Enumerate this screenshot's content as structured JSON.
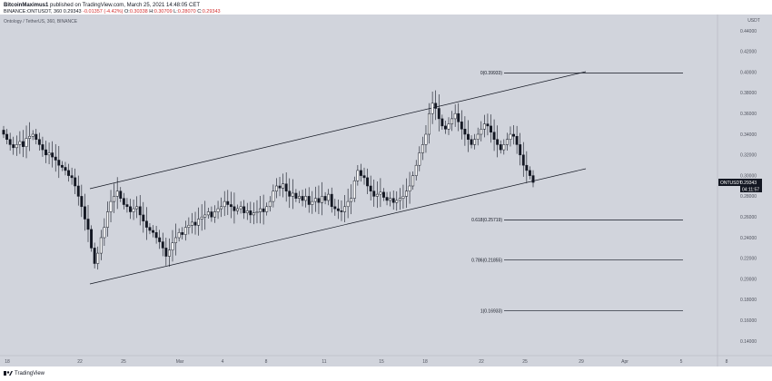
{
  "header": {
    "publisher": "BitcoinMaximus1",
    "published_text": "published on TradingView.com, March 25, 2021 14:48:05 CET",
    "symbol_line": "BINANCE:ONTUSDT, 360",
    "price": "0.29343",
    "change": "-0.01357 (-4.42%)",
    "o_label": "O:",
    "o": "0.30338",
    "h_label": "H:",
    "h": "0.30709",
    "l_label": "L:",
    "l": "0.28070",
    "c_label": "C:",
    "c": "0.29343"
  },
  "legend": {
    "text": "Ontology / TetherUS, 360, BINANCE"
  },
  "axis": {
    "currency": "USDT",
    "y_ticks": [
      "0.44000",
      "0.42000",
      "0.40000",
      "0.38000",
      "0.36000",
      "0.34000",
      "0.32000",
      "0.30000",
      "0.28000",
      "0.26000",
      "0.24000",
      "0.22000",
      "0.20000",
      "0.18000",
      "0.16000",
      "0.14000"
    ],
    "x_ticks": [
      "18",
      "22",
      "25",
      "Mar",
      "4",
      "8",
      "11",
      "15",
      "18",
      "22",
      "25",
      "29",
      "Apr",
      "5",
      "8"
    ],
    "last_price_symbol": "ONTUSDT",
    "last_price": "0.29343",
    "countdown": "04:11:57"
  },
  "fib": [
    {
      "label": "0(0.39933)",
      "value": 0.39933
    },
    {
      "label": "0.618(0.25719)",
      "value": 0.25719
    },
    {
      "label": "0.786(0.21855)",
      "value": 0.21855
    },
    {
      "label": "1(0.16933)",
      "value": 0.16933
    }
  ],
  "colors": {
    "background": "#d1d4dc",
    "candle": "#131722",
    "axis_text": "#50535e"
  },
  "footer": {
    "brand": "TradingView"
  },
  "chart_data": {
    "type": "candlestick",
    "title": "Ontology / TetherUS, 360, BINANCE",
    "ylim": [
      0.13,
      0.452
    ],
    "xlabel": "",
    "ylabel": "",
    "close_series": [
      0.34,
      0.335,
      0.33,
      0.327,
      0.33,
      0.333,
      0.328,
      0.336,
      0.338,
      0.34,
      0.335,
      0.33,
      0.325,
      0.32,
      0.322,
      0.318,
      0.315,
      0.31,
      0.308,
      0.305,
      0.3,
      0.298,
      0.29,
      0.28,
      0.27,
      0.258,
      0.248,
      0.23,
      0.215,
      0.225,
      0.24,
      0.25,
      0.265,
      0.275,
      0.28,
      0.285,
      0.278,
      0.272,
      0.27,
      0.265,
      0.268,
      0.27,
      0.262,
      0.256,
      0.25,
      0.247,
      0.245,
      0.24,
      0.236,
      0.23,
      0.222,
      0.228,
      0.235,
      0.24,
      0.245,
      0.243,
      0.25,
      0.252,
      0.255,
      0.252,
      0.258,
      0.26,
      0.262,
      0.265,
      0.26,
      0.265,
      0.268,
      0.27,
      0.275,
      0.272,
      0.27,
      0.266,
      0.268,
      0.27,
      0.264,
      0.266,
      0.262,
      0.264,
      0.265,
      0.268,
      0.265,
      0.27,
      0.275,
      0.285,
      0.29,
      0.288,
      0.292,
      0.285,
      0.28,
      0.283,
      0.278,
      0.28,
      0.276,
      0.28,
      0.272,
      0.275,
      0.278,
      0.274,
      0.28,
      0.276,
      0.282,
      0.27,
      0.268,
      0.266,
      0.265,
      0.27,
      0.275,
      0.278,
      0.295,
      0.305,
      0.3,
      0.298,
      0.29,
      0.285,
      0.28,
      0.282,
      0.284,
      0.279,
      0.276,
      0.278,
      0.274,
      0.276,
      0.278,
      0.28,
      0.285,
      0.29,
      0.3,
      0.31,
      0.322,
      0.33,
      0.34,
      0.36,
      0.37,
      0.365,
      0.355,
      0.348,
      0.345,
      0.35,
      0.355,
      0.36,
      0.352,
      0.345,
      0.34,
      0.335,
      0.33,
      0.335,
      0.34,
      0.345,
      0.35,
      0.348,
      0.342,
      0.335,
      0.33,
      0.325,
      0.33,
      0.335,
      0.34,
      0.338,
      0.33,
      0.32,
      0.31,
      0.305,
      0.3,
      0.29343
    ]
  }
}
